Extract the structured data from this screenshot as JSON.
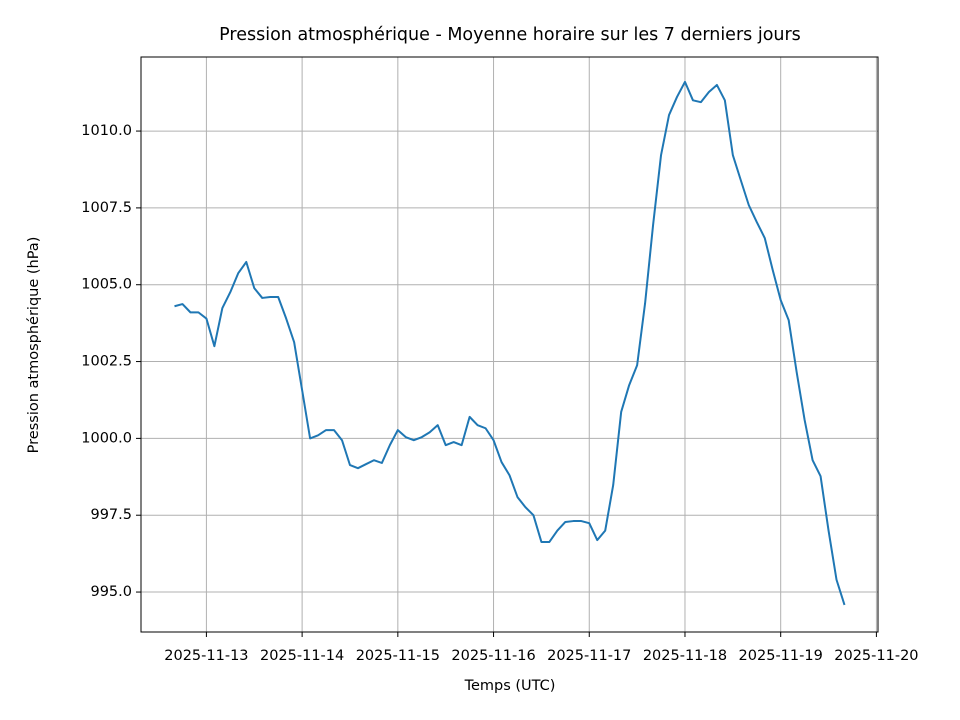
{
  "chart_data": {
    "type": "line",
    "title": "Pression atmosphérique - Moyenne horaire sur les 7 derniers jours",
    "x_label": "Temps (UTC)",
    "y_label": "Pression atmosphérique (hPa)",
    "x": [
      "2025-11-12T16:00",
      "2025-11-12T18:00",
      "2025-11-12T20:00",
      "2025-11-12T22:00",
      "2025-11-13T00:00",
      "2025-11-13T02:00",
      "2025-11-13T04:00",
      "2025-11-13T06:00",
      "2025-11-13T08:00",
      "2025-11-13T10:00",
      "2025-11-13T12:00",
      "2025-11-13T14:00",
      "2025-11-13T16:00",
      "2025-11-13T18:00",
      "2025-11-13T20:00",
      "2025-11-13T22:00",
      "2025-11-14T00:00",
      "2025-11-14T02:00",
      "2025-11-14T04:00",
      "2025-11-14T06:00",
      "2025-11-14T08:00",
      "2025-11-14T10:00",
      "2025-11-14T12:00",
      "2025-11-14T14:00",
      "2025-11-14T16:00",
      "2025-11-14T18:00",
      "2025-11-14T20:00",
      "2025-11-14T22:00",
      "2025-11-15T00:00",
      "2025-11-15T02:00",
      "2025-11-15T04:00",
      "2025-11-15T06:00",
      "2025-11-15T08:00",
      "2025-11-15T10:00",
      "2025-11-15T12:00",
      "2025-11-15T14:00",
      "2025-11-15T16:00",
      "2025-11-15T18:00",
      "2025-11-15T20:00",
      "2025-11-15T22:00",
      "2025-11-16T00:00",
      "2025-11-16T02:00",
      "2025-11-16T04:00",
      "2025-11-16T06:00",
      "2025-11-16T08:00",
      "2025-11-16T10:00",
      "2025-11-16T12:00",
      "2025-11-16T14:00",
      "2025-11-16T16:00",
      "2025-11-16T18:00",
      "2025-11-16T20:00",
      "2025-11-16T22:00",
      "2025-11-17T00:00",
      "2025-11-17T02:00",
      "2025-11-17T04:00",
      "2025-11-17T06:00",
      "2025-11-17T08:00",
      "2025-11-17T10:00",
      "2025-11-17T12:00",
      "2025-11-17T14:00",
      "2025-11-17T16:00",
      "2025-11-17T18:00",
      "2025-11-17T20:00",
      "2025-11-17T22:00",
      "2025-11-18T00:00",
      "2025-11-18T02:00",
      "2025-11-18T04:00",
      "2025-11-18T06:00",
      "2025-11-18T08:00",
      "2025-11-18T10:00",
      "2025-11-18T12:00",
      "2025-11-18T14:00",
      "2025-11-18T16:00",
      "2025-11-18T18:00",
      "2025-11-18T20:00",
      "2025-11-18T22:00",
      "2025-11-19T00:00",
      "2025-11-19T02:00",
      "2025-11-19T04:00",
      "2025-11-19T06:00",
      "2025-11-19T08:00",
      "2025-11-19T10:00",
      "2025-11-19T12:00",
      "2025-11-19T14:00",
      "2025-11-19T16:00"
    ],
    "series": [
      {
        "name": "Pression",
        "color": "#1f77b4",
        "values": [
          1004.3,
          1004.37,
          1004.1,
          1004.1,
          1003.9,
          1003.0,
          1004.24,
          1004.76,
          1005.38,
          1005.74,
          1004.89,
          1004.57,
          1004.6,
          1004.6,
          1003.9,
          1003.13,
          1001.57,
          1000.0,
          1000.1,
          1000.27,
          1000.27,
          999.94,
          999.13,
          999.03,
          999.16,
          999.29,
          999.2,
          999.78,
          1000.27,
          1000.04,
          999.94,
          1000.04,
          1000.2,
          1000.43,
          999.78,
          999.88,
          999.78,
          1000.7,
          1000.43,
          1000.33,
          999.94,
          999.23,
          998.8,
          998.09,
          997.76,
          997.5,
          996.63,
          996.63,
          997.0,
          997.28,
          997.31,
          997.31,
          997.24,
          996.69,
          997.0,
          998.48,
          1000.86,
          1001.73,
          1002.38,
          1004.4,
          1006.94,
          1009.22,
          1010.52,
          1011.11,
          1011.6,
          1011.0,
          1010.94,
          1011.27,
          1011.5,
          1011.0,
          1009.22,
          1008.4,
          1007.59,
          1007.04,
          1006.52,
          1005.48,
          1004.5,
          1003.85,
          1002.16,
          1000.6,
          999.29,
          998.77,
          997.0,
          995.4,
          994.58
        ]
      }
    ],
    "xlim": [
      "2025-11-12T07:36",
      "2025-11-20T00:24"
    ],
    "xticks": [
      "2025-11-13",
      "2025-11-14",
      "2025-11-15",
      "2025-11-16",
      "2025-11-17",
      "2025-11-18",
      "2025-11-19",
      "2025-11-20"
    ],
    "ylim": [
      993.7,
      1012.41
    ],
    "yticks": [
      {
        "value": 995,
        "label": "995.0"
      },
      {
        "value": 997.5,
        "label": "997.5"
      },
      {
        "value": 1000,
        "label": "1000.0"
      },
      {
        "value": 1002.5,
        "label": "1002.5"
      },
      {
        "value": 1005,
        "label": "1005.0"
      },
      {
        "value": 1007.5,
        "label": "1007.5"
      },
      {
        "value": 1010,
        "label": "1010.0"
      }
    ],
    "grid": true
  }
}
